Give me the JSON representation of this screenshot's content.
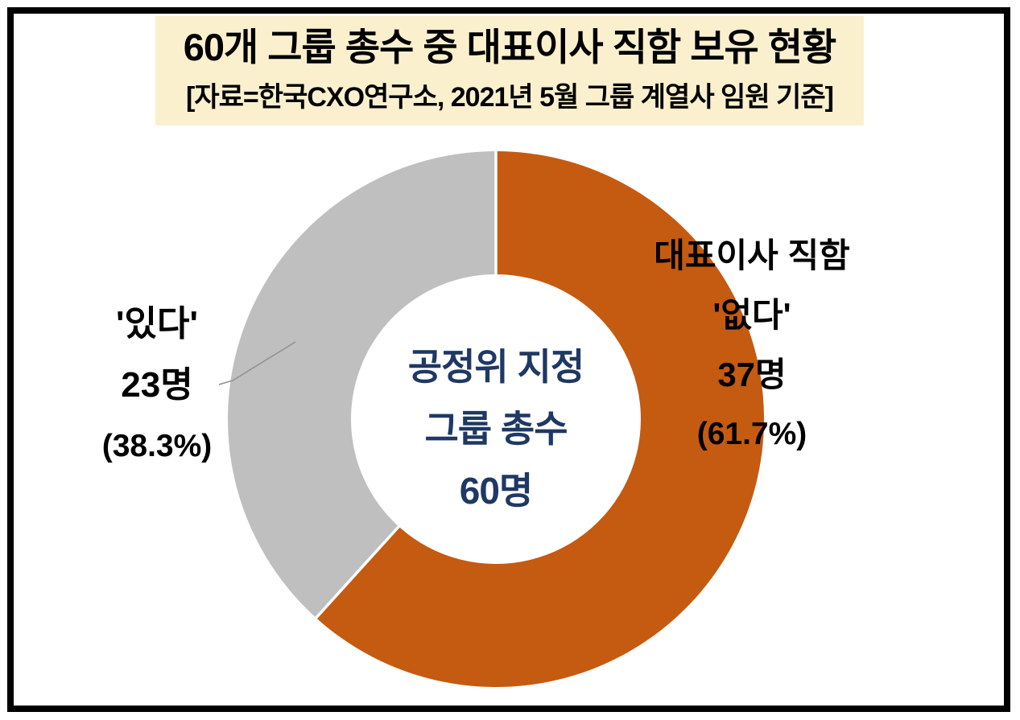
{
  "page": {
    "background": "#FFFFFF",
    "frame_border_color": "#000000"
  },
  "header": {
    "title": "60개 그룹 총수 중 대표이사 직함 보유 현황",
    "subtitle": "[자료=한국CXO연구소,  2021년 5월 그룹 계열사 임원 기준]",
    "background": "#FBF0CE",
    "text_color": "#000000"
  },
  "chart_data": {
    "type": "pie",
    "variant": "donut",
    "title": "60개 그룹 총수 중 대표이사 직함 보유 현황",
    "source_note": "[자료=한국CXO연구소, 2021년 5월 그룹 계열사 임원 기준]",
    "unit": "명",
    "total": 60,
    "start_angle_deg": 0,
    "direction": "clockwise",
    "legend": "none",
    "center_label": {
      "lines": [
        "공정위 지정",
        "그룹 총수",
        "60명"
      ],
      "color": "#1F3864"
    },
    "slices": [
      {
        "id": "no-ceo-title",
        "name": "대표이사 직함 없다",
        "label_lines": [
          "대표이사 직함",
          "'없다'",
          "37명",
          "(61.7%)"
        ],
        "value": 37,
        "pct": 61.7,
        "color": "#C55A11"
      },
      {
        "id": "has-ceo-title",
        "name": "대표이사 직함 있다",
        "label_lines": [
          "'있다'",
          "23명",
          "(38.3%)"
        ],
        "value": 23,
        "pct": 38.3,
        "color": "#BFBFBF"
      }
    ],
    "leader_line_color": "#909090"
  }
}
